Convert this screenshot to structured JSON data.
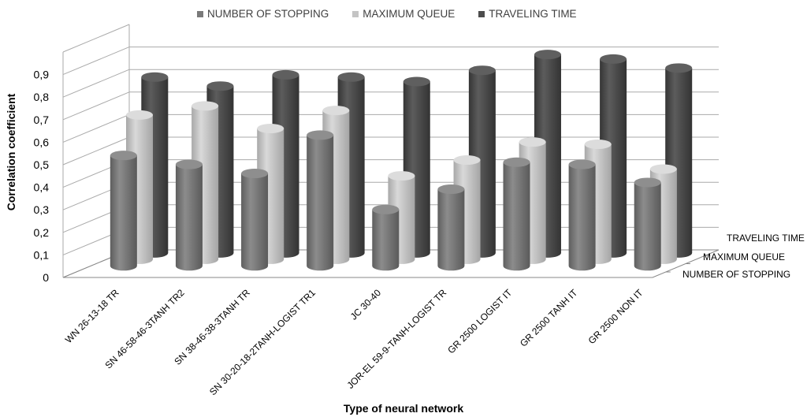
{
  "chart_data": {
    "type": "bar",
    "title": "",
    "xlabel": "Type of neural network",
    "ylabel": "Correlation coefficient",
    "ylim": [
      0,
      0.9
    ],
    "yticks": [
      "0",
      "0,1",
      "0,2",
      "0,3",
      "0,4",
      "0,5",
      "0,6",
      "0,7",
      "0,8",
      "0,9"
    ],
    "categories": [
      "WN 26-13-18 TR",
      "SN 46-58-46-3TANH TR2",
      "SN 38-46-38-3TANH TR",
      "SN 30-20-18-2TANH-LOGIST TR1",
      "JC 30-40",
      "JOR-EL 59-9-TANH-LOGIST TR",
      "GR 2500 LOGIST IT",
      "GR 2500 TANH IT",
      "GR 2500 NON IT"
    ],
    "depth_labels": [
      "TRAVELING TIME",
      "MAXIMUM QUEUE",
      "NUMBER OF STOPPING"
    ],
    "legend_position": "top",
    "series": [
      {
        "name": "NUMBER OF STOPPING",
        "color": "#7a7a7a",
        "values": [
          0.49,
          0.45,
          0.41,
          0.58,
          0.25,
          0.34,
          0.46,
          0.45,
          0.37
        ]
      },
      {
        "name": "MAXIMUM QUEUE",
        "color": "#c4c4c4",
        "values": [
          0.64,
          0.68,
          0.58,
          0.66,
          0.37,
          0.44,
          0.52,
          0.51,
          0.4
        ]
      },
      {
        "name": "TRAVELING TIME",
        "color": "#4d4d4d",
        "values": [
          0.78,
          0.74,
          0.79,
          0.78,
          0.76,
          0.81,
          0.88,
          0.86,
          0.82
        ]
      }
    ]
  }
}
